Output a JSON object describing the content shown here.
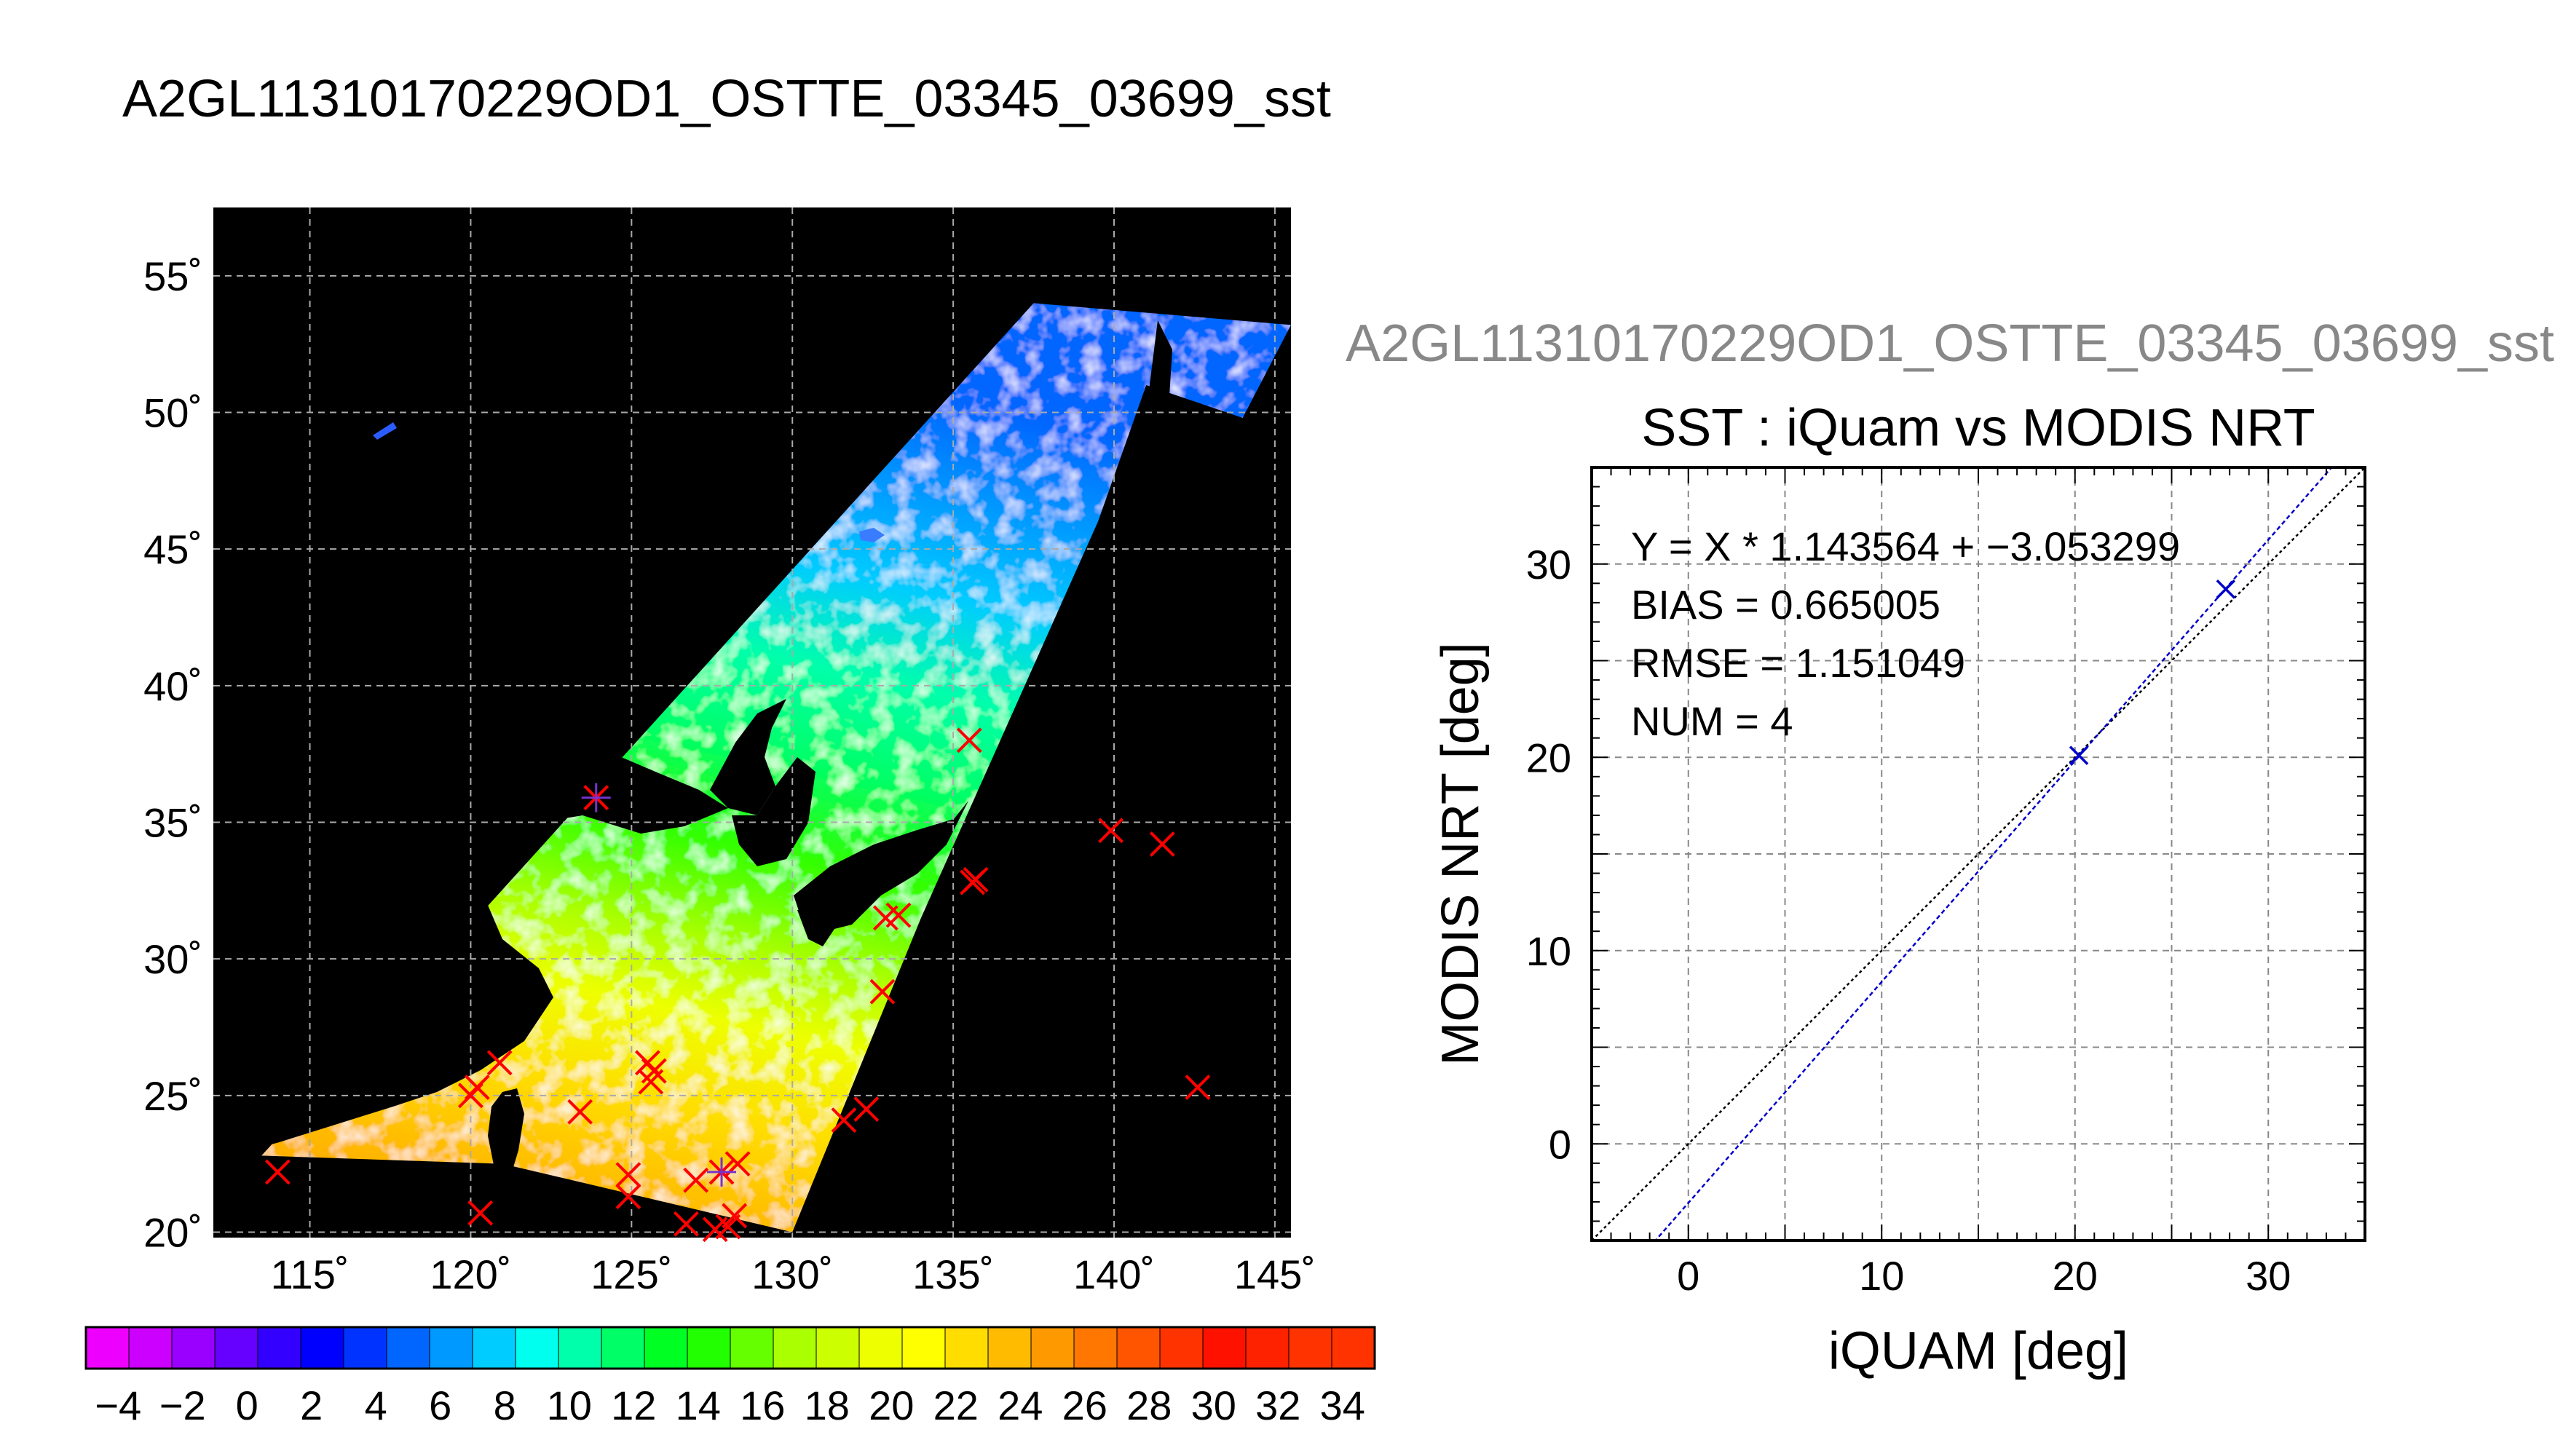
{
  "main_title": "A2GL11310170229OD1_OSTTE_03345_03699_sst",
  "scatter_header": "A2GL11310170229OD1_OSTTE_03345_03699_sst",
  "colors": {
    "map_background": "#000000",
    "match_marker": "#ff0000",
    "fit_line": "#0000cc",
    "one_to_one_line": "#000000",
    "scatter_marker": "#0000cc"
  },
  "chart_data": [
    {
      "type": "map",
      "title": "A2GL11310170229OD1_OSTTE_03345_03699_sst",
      "xlim": [
        112,
        145.5
      ],
      "ylim": [
        19.8,
        57.5
      ],
      "x_ticks": [
        115,
        120,
        125,
        130,
        135,
        140,
        145
      ],
      "x_tick_labels": [
        "115˚",
        "120˚",
        "125˚",
        "130˚",
        "135˚",
        "140˚",
        "145˚"
      ],
      "y_ticks": [
        20,
        25,
        30,
        35,
        40,
        45,
        50,
        55
      ],
      "y_tick_labels": [
        "20˚",
        "25˚",
        "30˚",
        "35˚",
        "40˚",
        "45˚",
        "50˚",
        "55˚"
      ],
      "grid": true,
      "swath_edge": [
        [
          113.5,
          22.8
        ],
        [
          121,
          22.5
        ],
        [
          130,
          20.0
        ],
        [
          134,
          31.5
        ],
        [
          139.5,
          46
        ],
        [
          141,
          51
        ],
        [
          144,
          49.8
        ],
        [
          145.5,
          53.2
        ],
        [
          137.5,
          54.0
        ]
      ],
      "match_points": [
        [
          114.0,
          22.2
        ],
        [
          120.0,
          25.0
        ],
        [
          120.2,
          25.3
        ],
        [
          120.9,
          26.2
        ],
        [
          120.3,
          20.7
        ],
        [
          123.4,
          24.4
        ],
        [
          123.9,
          35.9
        ],
        [
          124.9,
          22.1
        ],
        [
          124.9,
          21.3
        ],
        [
          125.5,
          26.2
        ],
        [
          125.6,
          25.5
        ],
        [
          125.7,
          25.9
        ],
        [
          126.7,
          20.3
        ],
        [
          127.0,
          21.9
        ],
        [
          127.6,
          20.1
        ],
        [
          127.8,
          22.2
        ],
        [
          128.0,
          20.2
        ],
        [
          128.2,
          20.6
        ],
        [
          128.3,
          22.5
        ],
        [
          131.6,
          24.1
        ],
        [
          132.3,
          24.5
        ],
        [
          132.8,
          28.8
        ],
        [
          132.9,
          31.5
        ],
        [
          133.3,
          31.6
        ],
        [
          135.5,
          38.0
        ],
        [
          135.6,
          32.8
        ],
        [
          135.7,
          32.9
        ],
        [
          139.9,
          34.7
        ],
        [
          141.5,
          34.2
        ],
        [
          142.6,
          25.3
        ]
      ],
      "highlight_points": [
        [
          123.9,
          35.9
        ],
        [
          127.8,
          22.2
        ]
      ]
    },
    {
      "type": "colorbar",
      "range": [
        -5,
        35
      ],
      "tick_values": [
        -4,
        -2,
        0,
        2,
        4,
        6,
        8,
        10,
        12,
        14,
        16,
        18,
        20,
        22,
        24,
        26,
        28,
        30,
        32,
        34
      ],
      "tick_labels": [
        "−4",
        "−2",
        "0",
        "2",
        "4",
        "6",
        "8",
        "10",
        "12",
        "14",
        "16",
        "18",
        "20",
        "22",
        "24",
        "26",
        "28",
        "30",
        "32",
        "34"
      ],
      "bin_colors": [
        "#ee00ff",
        "#cc00ff",
        "#9900ff",
        "#6600ff",
        "#3300ff",
        "#0000ff",
        "#0033ff",
        "#0066ff",
        "#0099ff",
        "#00ccff",
        "#00ffee",
        "#00ffaa",
        "#00ff66",
        "#00ff22",
        "#22ff00",
        "#66ff00",
        "#aaff00",
        "#ccff00",
        "#eeff00",
        "#ffff00",
        "#ffdd00",
        "#ffbb00",
        "#ff9900",
        "#ff7700",
        "#ff5500",
        "#ff3300",
        "#ff1100",
        "#ff2200",
        "#ff3300",
        "#ff3300"
      ]
    },
    {
      "type": "scatter",
      "title": "SST : iQuam vs MODIS NRT",
      "xlabel": "iQUAM [deg]",
      "ylabel": "MODIS NRT [deg]",
      "xlim": [
        -5,
        35
      ],
      "ylim": [
        -5,
        35
      ],
      "x_ticks": [
        0,
        10,
        20,
        30
      ],
      "y_ticks": [
        0,
        10,
        20,
        30
      ],
      "x_tick_labels": [
        "0",
        "10",
        "20",
        "30"
      ],
      "y_tick_labels": [
        "0",
        "10",
        "20",
        "30"
      ],
      "grid": true,
      "points": [
        {
          "x": 20.2,
          "y": 20.1
        },
        {
          "x": 27.8,
          "y": 28.7
        }
      ],
      "fit": {
        "slope": 1.143564,
        "intercept": -3.053299
      },
      "stats": [
        "Y = X * 1.143564 + −3.053299",
        "BIAS = 0.665005",
        "RMSE = 1.151049",
        "NUM = 4"
      ]
    }
  ]
}
